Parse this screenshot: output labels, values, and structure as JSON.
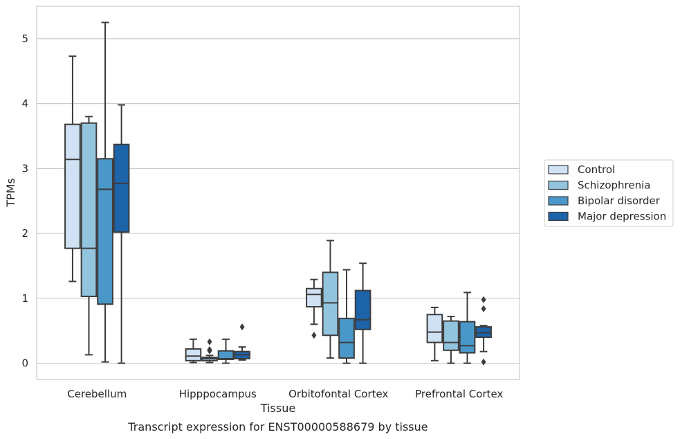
{
  "caption": "Transcript expression for ENST00000588679 by tissue",
  "chart_data": {
    "type": "box",
    "xlabel": "Tissue",
    "ylabel": "TPMs",
    "ylim": [
      -0.25,
      5.5
    ],
    "yticks": [
      0,
      1,
      2,
      3,
      4,
      5
    ],
    "grid": "horizontal",
    "legend_position": "right",
    "categories": [
      "Cerebellum",
      "Hipppocampus",
      "Orbitofontal Cortex",
      "Prefrontal Cortex"
    ],
    "series": [
      {
        "name": "Control",
        "color": "#cfe1f2",
        "boxes": [
          {
            "whisker_low": 1.26,
            "q1": 1.77,
            "median": 3.14,
            "q3": 3.68,
            "whisker_high": 4.73,
            "outliers": []
          },
          {
            "whisker_low": 0.01,
            "q1": 0.04,
            "median": 0.11,
            "q3": 0.22,
            "whisker_high": 0.37,
            "outliers": []
          },
          {
            "whisker_low": 0.6,
            "q1": 0.87,
            "median": 1.06,
            "q3": 1.15,
            "whisker_high": 1.29,
            "outliers": [
              0.43
            ]
          },
          {
            "whisker_low": 0.04,
            "q1": 0.32,
            "median": 0.48,
            "q3": 0.75,
            "whisker_high": 0.86,
            "outliers": []
          }
        ]
      },
      {
        "name": "Schizophrenia",
        "color": "#93c4de",
        "boxes": [
          {
            "whisker_low": 0.13,
            "q1": 1.03,
            "median": 1.77,
            "q3": 3.7,
            "whisker_high": 3.8,
            "outliers": []
          },
          {
            "whisker_low": 0.01,
            "q1": 0.04,
            "median": 0.07,
            "q3": 0.09,
            "whisker_high": 0.12,
            "outliers": [
              0.19,
              0.21,
              0.33
            ]
          },
          {
            "whisker_low": 0.08,
            "q1": 0.43,
            "median": 0.93,
            "q3": 1.4,
            "whisker_high": 1.89,
            "outliers": []
          },
          {
            "whisker_low": 0.0,
            "q1": 0.2,
            "median": 0.32,
            "q3": 0.65,
            "whisker_high": 0.72,
            "outliers": []
          }
        ]
      },
      {
        "name": "Bipolar disorder",
        "color": "#4a98c9",
        "boxes": [
          {
            "whisker_low": 0.02,
            "q1": 0.91,
            "median": 2.68,
            "q3": 3.15,
            "whisker_high": 5.25,
            "outliers": []
          },
          {
            "whisker_low": 0.0,
            "q1": 0.06,
            "median": 0.07,
            "q3": 0.19,
            "whisker_high": 0.37,
            "outliers": []
          },
          {
            "whisker_low": 0.0,
            "q1": 0.08,
            "median": 0.32,
            "q3": 0.69,
            "whisker_high": 1.44,
            "outliers": []
          },
          {
            "whisker_low": 0.0,
            "q1": 0.16,
            "median": 0.27,
            "q3": 0.64,
            "whisker_high": 1.09,
            "outliers": []
          }
        ]
      },
      {
        "name": "Major depression",
        "color": "#1c63a8",
        "boxes": [
          {
            "whisker_low": 0.0,
            "q1": 2.02,
            "median": 2.77,
            "q3": 3.37,
            "whisker_high": 3.98,
            "outliers": []
          },
          {
            "whisker_low": 0.05,
            "q1": 0.07,
            "median": 0.13,
            "q3": 0.18,
            "whisker_high": 0.25,
            "outliers": [
              0.56
            ]
          },
          {
            "whisker_low": 0.0,
            "q1": 0.52,
            "median": 0.67,
            "q3": 1.12,
            "whisker_high": 1.54,
            "outliers": []
          },
          {
            "whisker_low": 0.18,
            "q1": 0.4,
            "median": 0.47,
            "q3": 0.56,
            "whisker_high": 0.58,
            "outliers": [
              0.02,
              0.84,
              0.98
            ]
          }
        ]
      }
    ]
  }
}
